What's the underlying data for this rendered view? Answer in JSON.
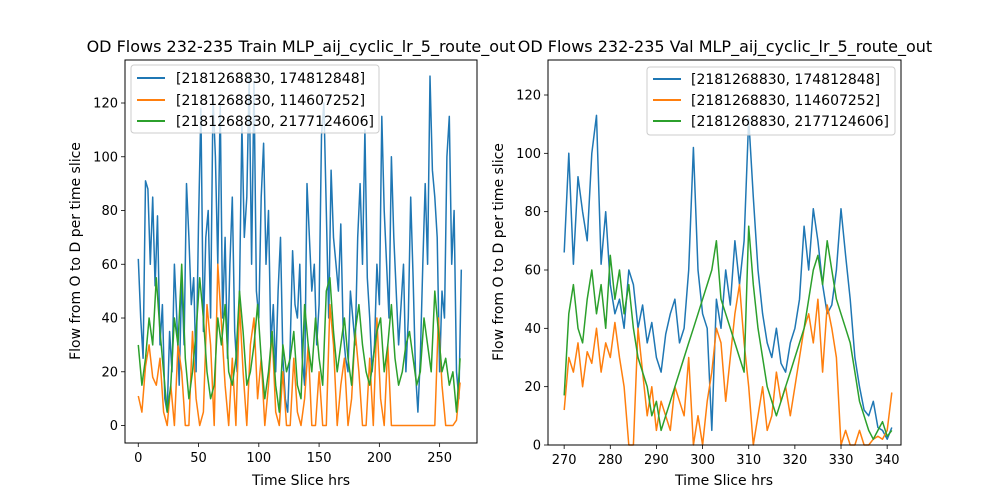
{
  "chart_data": [
    {
      "type": "line",
      "title": "OD Flows 232-235  Train MLP_aij_cyclic_lr_5_route_out",
      "xlabel": "Time Slice hrs",
      "ylabel": "Flow from O to D per time slice",
      "xlim": [
        -11,
        281
      ],
      "ylim": [
        -6.5,
        136
      ],
      "xticks": [
        0,
        50,
        100,
        150,
        200,
        250
      ],
      "yticks": [
        0,
        20,
        40,
        60,
        80,
        100,
        120
      ],
      "legend_position": "upper-left",
      "series": [
        {
          "name": "[2181268830, 174812848]",
          "color": "#1f77b4",
          "x": [
            0,
            2,
            4,
            6,
            8,
            10,
            12,
            14,
            16,
            18,
            20,
            22,
            24,
            26,
            28,
            30,
            32,
            34,
            36,
            38,
            40,
            42,
            44,
            46,
            48,
            50,
            52,
            54,
            56,
            58,
            60,
            62,
            64,
            66,
            68,
            70,
            72,
            74,
            76,
            78,
            80,
            82,
            84,
            86,
            88,
            90,
            92,
            94,
            96,
            98,
            100,
            102,
            104,
            106,
            108,
            110,
            112,
            114,
            116,
            118,
            120,
            122,
            124,
            126,
            128,
            130,
            132,
            134,
            136,
            138,
            140,
            142,
            144,
            146,
            148,
            150,
            152,
            154,
            156,
            158,
            160,
            162,
            164,
            166,
            168,
            170,
            172,
            174,
            176,
            178,
            180,
            182,
            184,
            186,
            188,
            190,
            192,
            194,
            196,
            198,
            200,
            202,
            204,
            206,
            208,
            210,
            212,
            214,
            216,
            218,
            220,
            222,
            224,
            226,
            228,
            230,
            232,
            234,
            236,
            238,
            240,
            242,
            244,
            246,
            248,
            250,
            252,
            254,
            256,
            258,
            260,
            262,
            264,
            266,
            268
          ],
          "values": [
            62,
            40,
            25,
            91,
            88,
            60,
            85,
            52,
            78,
            30,
            45,
            10,
            5,
            35,
            20,
            60,
            40,
            15,
            55,
            30,
            90,
            70,
            45,
            55,
            20,
            75,
            118,
            35,
            70,
            80,
            40,
            122,
            100,
            60,
            120,
            40,
            70,
            25,
            60,
            85,
            35,
            20,
            50,
            112,
            70,
            85,
            130,
            60,
            128,
            50,
            40,
            85,
            105,
            60,
            80,
            30,
            45,
            20,
            50,
            70,
            25,
            10,
            5,
            30,
            65,
            45,
            40,
            60,
            25,
            15,
            90,
            70,
            50,
            60,
            30,
            45,
            108,
            120,
            80,
            40,
            95,
            70,
            60,
            50,
            75,
            35,
            25,
            20,
            50,
            40,
            30,
            70,
            90,
            60,
            110,
            55,
            40,
            20,
            30,
            60,
            45,
            115,
            80,
            60,
            40,
            100,
            70,
            50,
            30,
            45,
            60,
            20,
            40,
            85,
            55,
            20,
            5,
            25,
            60,
            90,
            60,
            130,
            95,
            85,
            70,
            20,
            50,
            40,
            100,
            115,
            60,
            80,
            20,
            10,
            58
          ]
        },
        {
          "name": "[2181268830, 114607252]",
          "color": "#ff7f0e",
          "x": [
            0,
            3,
            6,
            9,
            12,
            15,
            18,
            21,
            24,
            27,
            30,
            33,
            36,
            39,
            42,
            45,
            48,
            51,
            54,
            57,
            60,
            63,
            66,
            69,
            72,
            75,
            78,
            81,
            84,
            87,
            90,
            93,
            96,
            99,
            102,
            105,
            108,
            111,
            114,
            117,
            120,
            123,
            126,
            129,
            132,
            135,
            138,
            141,
            144,
            147,
            150,
            153,
            156,
            159,
            162,
            165,
            168,
            171,
            174,
            177,
            180,
            183,
            186,
            189,
            192,
            195,
            198,
            201,
            204,
            207,
            210,
            213,
            216,
            219,
            222,
            225,
            228,
            231,
            234,
            237,
            240,
            243,
            246,
            249,
            252,
            255,
            258,
            261,
            264,
            267
          ],
          "values": [
            11,
            5,
            22,
            30,
            18,
            15,
            25,
            5,
            0,
            15,
            0,
            30,
            20,
            0,
            0,
            35,
            10,
            0,
            5,
            45,
            30,
            0,
            60,
            38,
            15,
            0,
            25,
            0,
            45,
            20,
            0,
            30,
            40,
            10,
            25,
            0,
            15,
            35,
            5,
            0,
            20,
            0,
            0,
            25,
            5,
            0,
            10,
            30,
            0,
            0,
            20,
            0,
            0,
            45,
            30,
            0,
            15,
            25,
            0,
            10,
            35,
            20,
            0,
            0,
            25,
            0,
            40,
            10,
            0,
            30,
            0,
            0,
            0,
            0,
            0,
            0,
            0,
            0,
            0,
            0,
            0,
            0,
            0,
            40,
            15,
            0,
            0,
            0,
            2,
            16
          ]
        },
        {
          "name": "[2181268830, 2177124606]",
          "color": "#2ca02c",
          "x": [
            0,
            3,
            6,
            9,
            12,
            15,
            18,
            21,
            24,
            27,
            30,
            33,
            36,
            39,
            42,
            45,
            48,
            51,
            54,
            57,
            60,
            63,
            66,
            69,
            72,
            75,
            78,
            81,
            84,
            87,
            90,
            93,
            96,
            99,
            102,
            105,
            108,
            111,
            114,
            117,
            120,
            123,
            126,
            129,
            132,
            135,
            138,
            141,
            144,
            147,
            150,
            153,
            156,
            159,
            162,
            165,
            168,
            171,
            174,
            177,
            180,
            183,
            186,
            189,
            192,
            195,
            198,
            201,
            204,
            207,
            210,
            213,
            216,
            219,
            222,
            225,
            228,
            231,
            234,
            237,
            240,
            243,
            246,
            249,
            252,
            255,
            258,
            261,
            264,
            267
          ],
          "values": [
            30,
            15,
            25,
            40,
            30,
            55,
            35,
            20,
            5,
            15,
            40,
            30,
            60,
            25,
            10,
            20,
            35,
            55,
            40,
            20,
            10,
            15,
            40,
            30,
            45,
            20,
            15,
            25,
            50,
            35,
            15,
            20,
            30,
            45,
            25,
            10,
            20,
            35,
            15,
            5,
            30,
            20,
            25,
            35,
            15,
            10,
            45,
            30,
            20,
            40,
            25,
            15,
            50,
            55,
            35,
            20,
            30,
            40,
            25,
            15,
            35,
            45,
            30,
            20,
            15,
            25,
            35,
            40,
            20,
            30,
            45,
            25,
            15,
            20,
            30,
            35,
            25,
            15,
            20,
            40,
            30,
            20,
            50,
            35,
            20,
            25,
            15,
            20,
            5,
            25
          ]
        }
      ]
    },
    {
      "type": "line",
      "title": "OD Flows 232-235 Val MLP_aij_cyclic_lr_5_route_out",
      "xlabel": "Time Slice hrs",
      "ylabel": "Flow from O to D per time slice",
      "xlim": [
        266.5,
        343
      ],
      "ylim": [
        0,
        132
      ],
      "xticks": [
        270,
        280,
        290,
        300,
        310,
        320,
        330,
        340
      ],
      "yticks": [
        0,
        20,
        40,
        60,
        80,
        100,
        120
      ],
      "legend_position": "upper-right",
      "series": [
        {
          "name": "[2181268830, 174812848]",
          "color": "#1f77b4",
          "x": [
            270,
            271,
            272,
            273,
            274,
            275,
            276,
            277,
            278,
            279,
            280,
            281,
            282,
            283,
            284,
            285,
            286,
            287,
            288,
            289,
            290,
            291,
            292,
            293,
            294,
            295,
            296,
            297,
            298,
            299,
            300,
            301,
            302,
            303,
            304,
            305,
            306,
            307,
            308,
            309,
            310,
            311,
            312,
            313,
            314,
            315,
            316,
            317,
            318,
            319,
            320,
            321,
            322,
            323,
            324,
            325,
            326,
            327,
            328,
            329,
            330,
            331,
            332,
            333,
            334,
            335,
            336,
            337,
            338,
            339,
            340,
            341
          ],
          "values": [
            66,
            100,
            62,
            92,
            80,
            70,
            100,
            113,
            62,
            80,
            55,
            45,
            50,
            40,
            60,
            55,
            40,
            48,
            35,
            42,
            30,
            25,
            38,
            45,
            50,
            35,
            40,
            60,
            102,
            60,
            45,
            40,
            5,
            50,
            40,
            60,
            48,
            70,
            55,
            70,
            112,
            85,
            60,
            45,
            35,
            30,
            40,
            28,
            25,
            35,
            40,
            50,
            75,
            60,
            81,
            70,
            55,
            45,
            48,
            60,
            81,
            65,
            50,
            30,
            20,
            12,
            10,
            15,
            6,
            5,
            2,
            6
          ]
        },
        {
          "name": "[2181268830, 114607252]",
          "color": "#ff7f0e",
          "x": [
            270,
            271,
            272,
            273,
            274,
            275,
            276,
            277,
            278,
            279,
            280,
            281,
            282,
            283,
            284,
            285,
            286,
            287,
            288,
            289,
            290,
            291,
            292,
            293,
            294,
            295,
            296,
            297,
            298,
            299,
            300,
            301,
            302,
            303,
            304,
            305,
            306,
            307,
            308,
            309,
            310,
            311,
            312,
            313,
            314,
            315,
            316,
            317,
            318,
            319,
            320,
            321,
            322,
            323,
            324,
            325,
            326,
            327,
            328,
            329,
            330,
            331,
            332,
            333,
            334,
            335,
            336,
            337,
            338,
            339,
            340,
            341
          ],
          "values": [
            12,
            30,
            25,
            35,
            20,
            32,
            28,
            40,
            25,
            35,
            30,
            42,
            30,
            20,
            0,
            0,
            40,
            25,
            10,
            20,
            5,
            15,
            10,
            5,
            20,
            15,
            10,
            30,
            0,
            10,
            0,
            15,
            25,
            40,
            35,
            15,
            30,
            45,
            55,
            35,
            20,
            0,
            10,
            20,
            5,
            10,
            25,
            15,
            20,
            10,
            20,
            30,
            40,
            45,
            35,
            50,
            25,
            48,
            40,
            30,
            0,
            5,
            0,
            0,
            5,
            0,
            0,
            2,
            3,
            2,
            5,
            18
          ]
        },
        {
          "name": "[2181268830, 2177124606]",
          "color": "#2ca02c",
          "x": [
            270,
            271,
            272,
            273,
            274,
            275,
            276,
            277,
            278,
            279,
            280,
            281,
            282,
            283,
            284,
            285,
            286,
            287,
            288,
            289,
            290,
            291,
            292,
            293,
            294,
            295,
            296,
            297,
            298,
            299,
            300,
            301,
            302,
            303,
            304,
            305,
            306,
            307,
            308,
            309,
            310,
            311,
            312,
            313,
            314,
            315,
            316,
            317,
            318,
            319,
            320,
            321,
            322,
            323,
            324,
            325,
            326,
            327,
            328,
            329,
            330,
            331,
            332,
            333,
            334,
            335,
            336,
            337,
            338,
            339,
            340,
            341
          ],
          "values": [
            17,
            45,
            55,
            40,
            35,
            50,
            60,
            45,
            55,
            40,
            65,
            50,
            60,
            45,
            55,
            40,
            30,
            25,
            20,
            10,
            15,
            5,
            10,
            15,
            20,
            25,
            30,
            35,
            40,
            45,
            50,
            55,
            60,
            70,
            50,
            45,
            40,
            35,
            30,
            25,
            75,
            55,
            40,
            30,
            20,
            15,
            10,
            15,
            20,
            25,
            30,
            35,
            40,
            50,
            60,
            65,
            55,
            70,
            60,
            50,
            45,
            40,
            35,
            25,
            15,
            10,
            5,
            2,
            5,
            8,
            3,
            5
          ]
        }
      ]
    }
  ]
}
